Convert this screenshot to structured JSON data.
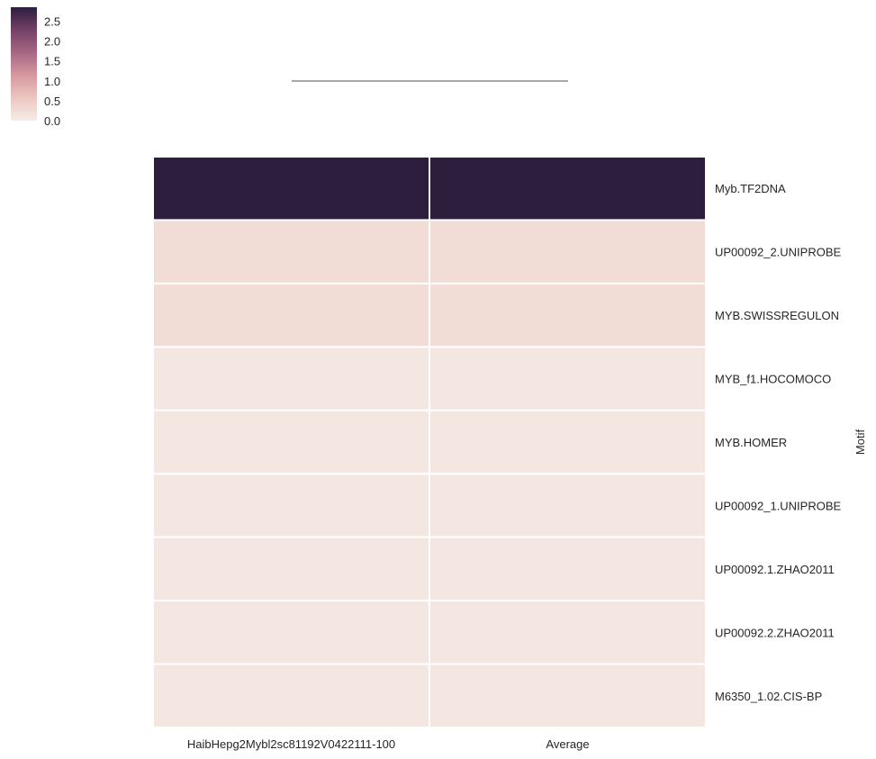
{
  "chart_data": {
    "type": "heatmap",
    "title": "",
    "xlabel": "",
    "ylabel": "Motif",
    "columns": [
      "HaibHepg2Mybl2sc81192V0422111-100",
      "Average"
    ],
    "rows": [
      "Myb.TF2DNA",
      "UP00092_2.UNIPROBE",
      "MYB.SWISSREGULON",
      "MYB_f1.HOCOMOCO",
      "MYB.HOMER",
      "UP00092_1.UNIPROBE",
      "UP00092.1.ZHAO2011",
      "UP00092.2.ZHAO2011",
      "M6350_1.02.CIS-BP"
    ],
    "values": [
      [
        2.85,
        2.85
      ],
      [
        0.25,
        0.25
      ],
      [
        0.25,
        0.25
      ],
      [
        0.1,
        0.1
      ],
      [
        0.1,
        0.1
      ],
      [
        0.1,
        0.1
      ],
      [
        0.1,
        0.1
      ],
      [
        0.1,
        0.1
      ],
      [
        0.1,
        0.1
      ]
    ],
    "colorbar": {
      "vmin": 0,
      "vmax": 2.85,
      "ticks": [
        0.0,
        0.5,
        1.0,
        1.5,
        2.0,
        2.5
      ],
      "tick_labels": [
        "0.0",
        "0.5",
        "1.0",
        "1.5",
        "2.0",
        "2.5"
      ],
      "colors": [
        "#f6ece8",
        "#ecc7c0",
        "#d598a0",
        "#a96684",
        "#734166",
        "#2d1e3e"
      ]
    },
    "dendrogram": "column dendrogram shown above heatmap",
    "grid": false,
    "legend": "colorbar top-left"
  }
}
